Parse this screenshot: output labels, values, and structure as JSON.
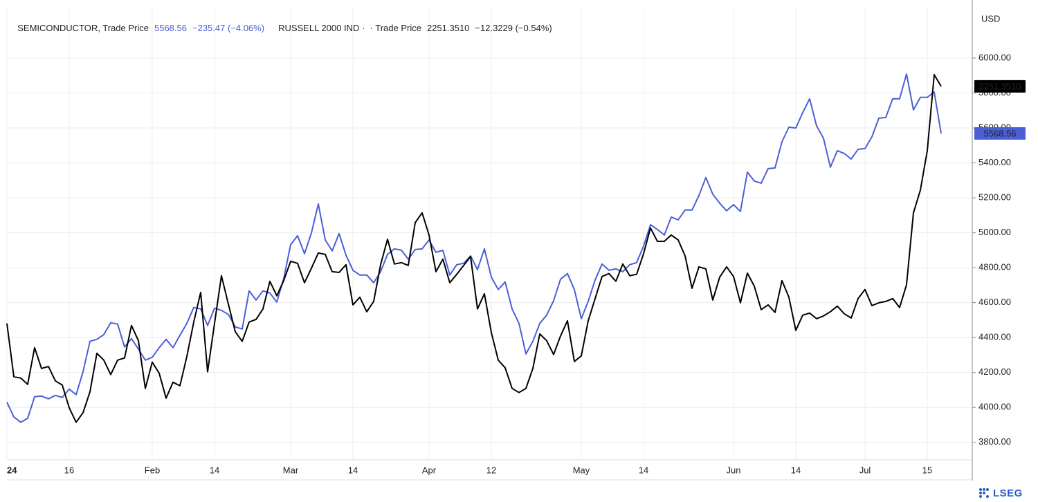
{
  "chart_data": {
    "type": "line",
    "currency": "USD",
    "brand": "LSEG",
    "grid": true,
    "ylim": [
      3700,
      6293
    ],
    "yticks": [
      {
        "value": 3800,
        "label": "3800.00"
      },
      {
        "value": 4000,
        "label": "4000.00"
      },
      {
        "value": 4200,
        "label": "4200.00"
      },
      {
        "value": 4400,
        "label": "4400.00"
      },
      {
        "value": 4600,
        "label": "4600.00"
      },
      {
        "value": 4800,
        "label": "4800.00"
      },
      {
        "value": 5000,
        "label": "5000.00"
      },
      {
        "value": 5200,
        "label": "5200.00"
      },
      {
        "value": 5400,
        "label": "5400.00"
      },
      {
        "value": 5600,
        "label": "5600.00"
      },
      {
        "value": 5800,
        "label": "5800.00"
      },
      {
        "value": 6000,
        "label": "6000.00"
      }
    ],
    "categories": [
      "24",
      null,
      null,
      null,
      null,
      null,
      null,
      null,
      null,
      "16",
      null,
      null,
      null,
      null,
      null,
      null,
      null,
      null,
      null,
      null,
      null,
      "Feb",
      null,
      null,
      null,
      null,
      null,
      null,
      null,
      null,
      "14",
      null,
      null,
      null,
      null,
      null,
      null,
      null,
      null,
      null,
      null,
      "Mar",
      null,
      null,
      null,
      null,
      null,
      null,
      null,
      null,
      "14",
      null,
      null,
      null,
      null,
      null,
      null,
      null,
      null,
      null,
      null,
      "Apr",
      null,
      null,
      null,
      null,
      null,
      null,
      null,
      null,
      "12",
      null,
      null,
      null,
      null,
      null,
      null,
      null,
      null,
      null,
      null,
      null,
      null,
      "May",
      null,
      null,
      null,
      null,
      null,
      null,
      null,
      null,
      "14",
      null,
      null,
      null,
      null,
      null,
      null,
      null,
      null,
      null,
      null,
      null,
      null,
      "Jun",
      null,
      null,
      null,
      null,
      null,
      null,
      null,
      null,
      "14",
      null,
      null,
      null,
      null,
      null,
      null,
      null,
      null,
      null,
      "Jul",
      null,
      null,
      null,
      null,
      null,
      null,
      null,
      null,
      "15",
      null,
      null
    ],
    "series": [
      {
        "name": "SEMICONDUCTOR, Trade Price",
        "color": "#4a5fd6",
        "legend_value": "5568.56",
        "legend_change": "−235.47 (−4.06%)",
        "last_label": "5568.56",
        "values": [
          4030,
          3946,
          3915,
          3938,
          4061,
          4065,
          4049,
          4069,
          4057,
          4105,
          4073,
          4204,
          4378,
          4390,
          4417,
          4485,
          4477,
          4346,
          4394,
          4334,
          4271,
          4287,
          4342,
          4390,
          4342,
          4413,
          4481,
          4572,
          4564,
          4469,
          4568,
          4556,
          4532,
          4461,
          4449,
          4667,
          4615,
          4667,
          4655,
          4603,
          4738,
          4932,
          4983,
          4880,
          4999,
          5165,
          4959,
          4896,
          4995,
          4872,
          4785,
          4758,
          4758,
          4714,
          4777,
          4876,
          4908,
          4900,
          4849,
          4904,
          4908,
          4959,
          4888,
          4900,
          4758,
          4817,
          4825,
          4868,
          4789,
          4908,
          4746,
          4675,
          4718,
          4564,
          4481,
          4306,
          4378,
          4481,
          4528,
          4611,
          4734,
          4766,
          4675,
          4508,
          4607,
          4730,
          4821,
          4785,
          4793,
          4777,
          4817,
          4829,
          4924,
          5046,
          5019,
          4987,
          5090,
          5074,
          5130,
          5130,
          5213,
          5316,
          5221,
          5169,
          5126,
          5161,
          5122,
          5347,
          5296,
          5284,
          5367,
          5371,
          5521,
          5604,
          5600,
          5688,
          5767,
          5612,
          5541,
          5375,
          5470,
          5454,
          5422,
          5478,
          5482,
          5549,
          5656,
          5660,
          5767,
          5767,
          5909,
          5703,
          5775,
          5775,
          5806,
          5568.56
        ]
      },
      {
        "name": "RUSSELL 2000 IND ·  · Trade Price",
        "color": "#000000",
        "legend_value": "2251.3510",
        "legend_change": "−12.3229 (−0.54%)",
        "last_label": "2251.3510",
        "values": [
          4481,
          4176,
          4168,
          4132,
          4342,
          4223,
          4235,
          4152,
          4128,
          3998,
          3915,
          3970,
          4089,
          4310,
          4271,
          4188,
          4271,
          4283,
          4469,
          4382,
          4109,
          4259,
          4196,
          4053,
          4144,
          4124,
          4291,
          4489,
          4659,
          4204,
          4481,
          4754,
          4591,
          4433,
          4378,
          4489,
          4504,
          4564,
          4722,
          4639,
          4726,
          4837,
          4825,
          4714,
          4797,
          4884,
          4876,
          4777,
          4773,
          4817,
          4587,
          4631,
          4548,
          4607,
          4817,
          4963,
          4821,
          4829,
          4813,
          5058,
          5114,
          4987,
          4777,
          4849,
          4714,
          4762,
          4813,
          4864,
          4564,
          4651,
          4429,
          4271,
          4227,
          4109,
          4085,
          4109,
          4223,
          4421,
          4382,
          4303,
          4409,
          4496,
          4263,
          4295,
          4496,
          4623,
          4750,
          4766,
          4722,
          4821,
          4754,
          4762,
          4880,
          5027,
          4951,
          4951,
          4987,
          4959,
          4868,
          4682,
          4805,
          4793,
          4615,
          4746,
          4805,
          4750,
          4599,
          4769,
          4694,
          4560,
          4587,
          4544,
          4726,
          4631,
          4441,
          4528,
          4540,
          4508,
          4524,
          4548,
          4580,
          4536,
          4512,
          4623,
          4675,
          4583,
          4599,
          4607,
          4623,
          4572,
          4702,
          5114,
          5244,
          5470,
          5905,
          5838
        ]
      }
    ]
  }
}
